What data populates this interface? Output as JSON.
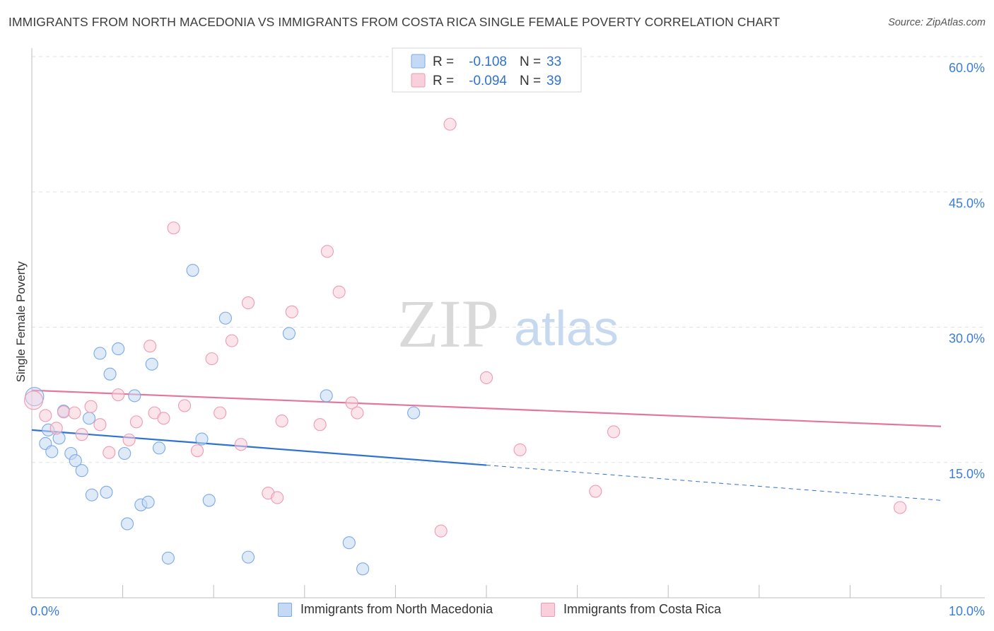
{
  "header": {
    "title": "IMMIGRANTS FROM NORTH MACEDONIA VS IMMIGRANTS FROM COSTA RICA SINGLE FEMALE POVERTY CORRELATION CHART",
    "source": "Source: ZipAtlas.com"
  },
  "watermark": {
    "zip": "ZIP",
    "atlas": "atlas"
  },
  "legend": {
    "rows": [
      {
        "r_label": "R =",
        "r_value": "-0.108",
        "n_label": "N =",
        "n_value": "33"
      },
      {
        "r_label": "R =",
        "r_value": "-0.094",
        "n_label": "N =",
        "n_value": "39"
      }
    ]
  },
  "chart_data": {
    "type": "scatter",
    "title": "IMMIGRANTS FROM NORTH MACEDONIA VS IMMIGRANTS FROM COSTA RICA SINGLE FEMALE POVERTY CORRELATION CHART",
    "xlabel": "",
    "ylabel": "Single Female Poverty",
    "xlim": [
      0,
      10
    ],
    "ylim": [
      0,
      60
    ],
    "x_tick_labels": [
      {
        "value": 0,
        "label": "0.0%"
      },
      {
        "value": 10,
        "label": "10.0%"
      }
    ],
    "x_minor_ticks": [
      0,
      1,
      2,
      3,
      4,
      5,
      6,
      7,
      8,
      9,
      10
    ],
    "y_ticks": [
      {
        "value": 15,
        "label": "15.0%"
      },
      {
        "value": 30,
        "label": "30.0%"
      },
      {
        "value": 45,
        "label": "45.0%"
      },
      {
        "value": 60,
        "label": "60.0%"
      }
    ],
    "grid": true,
    "series": [
      {
        "name": "Immigrants from North Macedonia",
        "color": "#7aaae8",
        "fill": "#c5d9f4",
        "line_color": "#2f72d2",
        "R": -0.108,
        "N": 33,
        "trend": {
          "x0": 0,
          "y0": 18.6,
          "x1": 5.0,
          "y1": 14.7,
          "dash_to_x": 10,
          "dash_to_y": 10.8
        },
        "points": [
          [
            0.03,
            22.3
          ],
          [
            0.15,
            17.1
          ],
          [
            0.18,
            18.6
          ],
          [
            0.22,
            16.2
          ],
          [
            0.3,
            17.7
          ],
          [
            0.35,
            20.7
          ],
          [
            0.43,
            16.0
          ],
          [
            0.48,
            15.2
          ],
          [
            0.55,
            14.1
          ],
          [
            0.63,
            19.9
          ],
          [
            0.66,
            11.4
          ],
          [
            0.75,
            27.1
          ],
          [
            0.82,
            11.7
          ],
          [
            0.86,
            24.8
          ],
          [
            0.95,
            27.6
          ],
          [
            1.02,
            16.0
          ],
          [
            1.05,
            8.2
          ],
          [
            1.13,
            22.4
          ],
          [
            1.2,
            10.3
          ],
          [
            1.28,
            10.6
          ],
          [
            1.32,
            25.9
          ],
          [
            1.4,
            16.6
          ],
          [
            1.5,
            4.4
          ],
          [
            1.77,
            36.3
          ],
          [
            1.87,
            17.6
          ],
          [
            1.95,
            10.8
          ],
          [
            2.13,
            31.0
          ],
          [
            2.38,
            4.5
          ],
          [
            2.83,
            29.3
          ],
          [
            3.24,
            22.4
          ],
          [
            3.49,
            6.1
          ],
          [
            3.64,
            3.2
          ],
          [
            4.2,
            20.5
          ]
        ]
      },
      {
        "name": "Immigrants from Costa Rica",
        "color": "#ee9ab2",
        "fill": "#f8cfdb",
        "line_color": "#e5769b",
        "R": -0.094,
        "N": 39,
        "trend": {
          "x0": 0,
          "y0": 23.0,
          "x1": 10,
          "y1": 19.0
        },
        "points": [
          [
            0.02,
            21.9
          ],
          [
            0.15,
            20.2
          ],
          [
            0.27,
            18.8
          ],
          [
            0.35,
            20.6
          ],
          [
            0.47,
            20.5
          ],
          [
            0.55,
            18.1
          ],
          [
            0.65,
            21.2
          ],
          [
            0.75,
            19.2
          ],
          [
            0.85,
            16.1
          ],
          [
            0.95,
            22.5
          ],
          [
            1.07,
            17.5
          ],
          [
            1.15,
            19.5
          ],
          [
            1.3,
            27.9
          ],
          [
            1.35,
            20.5
          ],
          [
            1.45,
            19.9
          ],
          [
            1.56,
            41.0
          ],
          [
            1.68,
            21.3
          ],
          [
            1.82,
            16.3
          ],
          [
            1.98,
            26.5
          ],
          [
            2.07,
            20.5
          ],
          [
            2.2,
            28.5
          ],
          [
            2.3,
            17.0
          ],
          [
            2.38,
            32.7
          ],
          [
            2.6,
            11.6
          ],
          [
            2.7,
            11.1
          ],
          [
            2.75,
            19.6
          ],
          [
            2.86,
            31.7
          ],
          [
            3.17,
            19.2
          ],
          [
            3.25,
            38.4
          ],
          [
            3.38,
            33.9
          ],
          [
            3.52,
            21.6
          ],
          [
            3.58,
            20.5
          ],
          [
            4.5,
            7.4
          ],
          [
            4.6,
            52.5
          ],
          [
            5.0,
            24.4
          ],
          [
            5.37,
            16.4
          ],
          [
            6.2,
            11.8
          ],
          [
            6.4,
            18.4
          ],
          [
            9.55,
            10.0
          ]
        ]
      }
    ]
  }
}
